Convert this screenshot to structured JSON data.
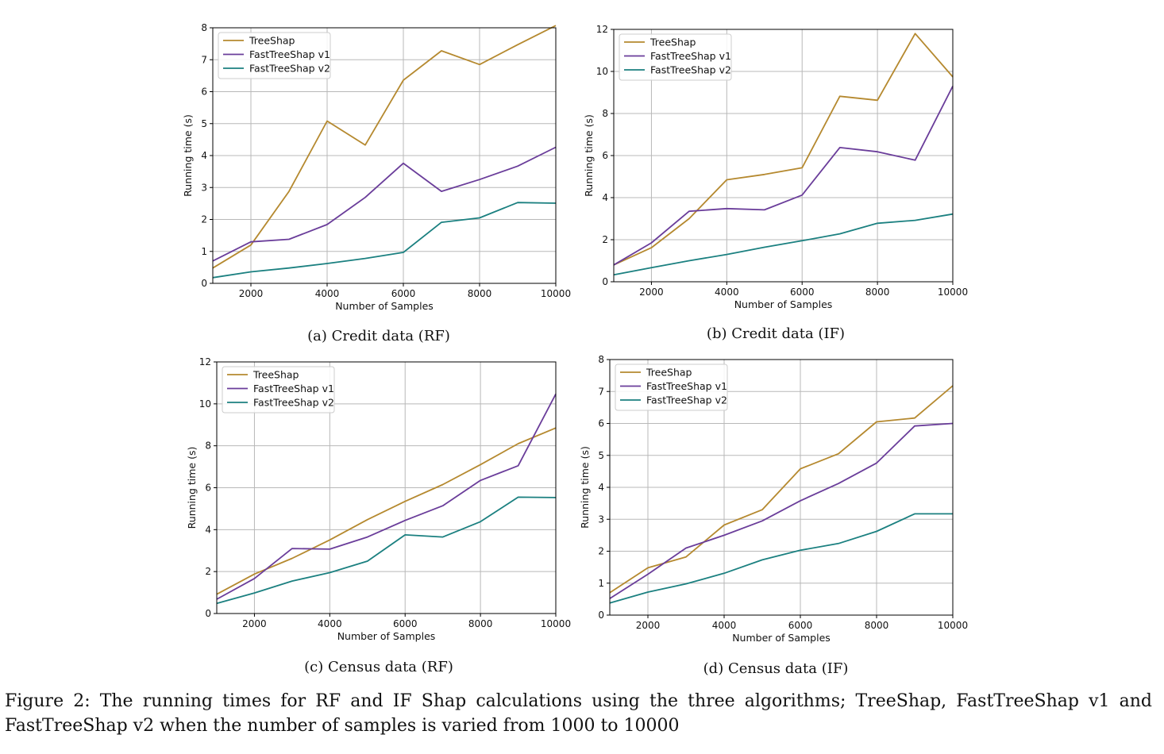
{
  "figure_caption": "Figure 2: The running times for RF and IF Shap calculations using the three algorithms; TreeShap, FastTreeShap v1 and FastTreeShap v2 when the number of samples is varied from 1000 to 10000",
  "chart_data": [
    {
      "type": "line",
      "caption": "(a) Credit data (RF)",
      "xlabel": "Number of Samples",
      "ylabel": "Running time (s)",
      "xlim": [
        1000,
        10000
      ],
      "ylim": [
        0,
        8
      ],
      "xticks": [
        2000,
        4000,
        6000,
        8000,
        10000
      ],
      "yticks": [
        0,
        1,
        2,
        3,
        4,
        5,
        6,
        7,
        8
      ],
      "grid": true,
      "legend_position": "top-left",
      "x": [
        1000,
        2000,
        3000,
        4000,
        5000,
        6000,
        7000,
        8000,
        9000,
        10000
      ],
      "series": [
        {
          "name": "TreeShap",
          "color": "#b5892f",
          "values": [
            0.48,
            1.2,
            2.88,
            5.08,
            4.33,
            6.36,
            7.28,
            6.85,
            7.47,
            8.07
          ]
        },
        {
          "name": "FastTreeShap v1",
          "color": "#6a3d9a",
          "values": [
            0.7,
            1.3,
            1.38,
            1.84,
            2.69,
            3.76,
            2.88,
            3.25,
            3.67,
            4.26
          ]
        },
        {
          "name": "FastTreeShap v2",
          "color": "#1b8080",
          "values": [
            0.18,
            0.36,
            0.48,
            0.62,
            0.78,
            0.97,
            1.91,
            2.05,
            2.53,
            2.51
          ]
        }
      ]
    },
    {
      "type": "line",
      "caption": "(b) Credit data (IF)",
      "xlabel": "Number of Samples",
      "ylabel": "Running time (s)",
      "xlim": [
        1000,
        10000
      ],
      "ylim": [
        0,
        12
      ],
      "xticks": [
        2000,
        4000,
        6000,
        8000,
        10000
      ],
      "yticks": [
        0,
        2,
        4,
        6,
        8,
        10,
        12
      ],
      "grid": true,
      "legend_position": "top-left",
      "x": [
        1000,
        2000,
        3000,
        4000,
        5000,
        6000,
        7000,
        8000,
        9000,
        10000
      ],
      "series": [
        {
          "name": "TreeShap",
          "color": "#b5892f",
          "values": [
            0.8,
            1.62,
            3.0,
            4.85,
            5.1,
            5.42,
            8.82,
            8.63,
            11.8,
            9.74
          ]
        },
        {
          "name": "FastTreeShap v1",
          "color": "#6a3d9a",
          "values": [
            0.8,
            1.85,
            3.35,
            3.48,
            3.42,
            4.12,
            6.38,
            6.18,
            5.78,
            9.3
          ]
        },
        {
          "name": "FastTreeShap v2",
          "color": "#1b8080",
          "values": [
            0.33,
            0.67,
            1.0,
            1.3,
            1.64,
            1.95,
            2.28,
            2.78,
            2.92,
            3.22
          ]
        }
      ]
    },
    {
      "type": "line",
      "caption": "(c) Census data (RF)",
      "xlabel": "Number of Samples",
      "ylabel": "Running time (s)",
      "xlim": [
        1000,
        10000
      ],
      "ylim": [
        0,
        12
      ],
      "xticks": [
        2000,
        4000,
        6000,
        8000,
        10000
      ],
      "yticks": [
        0,
        2,
        4,
        6,
        8,
        10,
        12
      ],
      "grid": true,
      "legend_position": "top-left",
      "x": [
        1000,
        2000,
        3000,
        4000,
        5000,
        6000,
        7000,
        8000,
        9000,
        10000
      ],
      "series": [
        {
          "name": "TreeShap",
          "color": "#b5892f",
          "values": [
            0.92,
            1.88,
            2.63,
            3.51,
            4.48,
            5.35,
            6.15,
            7.1,
            8.1,
            8.85
          ]
        },
        {
          "name": "FastTreeShap v1",
          "color": "#6a3d9a",
          "values": [
            0.68,
            1.67,
            3.1,
            3.07,
            3.65,
            4.44,
            5.14,
            6.35,
            7.05,
            10.47
          ]
        },
        {
          "name": "FastTreeShap v2",
          "color": "#1b8080",
          "values": [
            0.48,
            0.98,
            1.55,
            1.95,
            2.5,
            3.75,
            3.65,
            4.38,
            5.55,
            5.53
          ]
        }
      ]
    },
    {
      "type": "line",
      "caption": "(d) Census data (IF)",
      "xlabel": "Number of Samples",
      "ylabel": "Running time (s)",
      "xlim": [
        1000,
        10000
      ],
      "ylim": [
        0,
        8
      ],
      "xticks": [
        2000,
        4000,
        6000,
        8000,
        10000
      ],
      "yticks": [
        0,
        1,
        2,
        3,
        4,
        5,
        6,
        7,
        8
      ],
      "grid": true,
      "legend_position": "top-left",
      "x": [
        1000,
        2000,
        3000,
        4000,
        5000,
        6000,
        7000,
        8000,
        9000,
        10000
      ],
      "series": [
        {
          "name": "TreeShap",
          "color": "#b5892f",
          "values": [
            0.7,
            1.48,
            1.82,
            2.82,
            3.3,
            4.58,
            5.05,
            6.05,
            6.17,
            7.18
          ]
        },
        {
          "name": "FastTreeShap v1",
          "color": "#6a3d9a",
          "values": [
            0.52,
            1.28,
            2.1,
            2.5,
            2.95,
            3.58,
            4.12,
            4.76,
            5.92,
            6.0
          ]
        },
        {
          "name": "FastTreeShap v2",
          "color": "#1b8080",
          "values": [
            0.38,
            0.72,
            0.98,
            1.31,
            1.73,
            2.03,
            2.24,
            2.62,
            3.17,
            3.17
          ]
        }
      ]
    }
  ]
}
